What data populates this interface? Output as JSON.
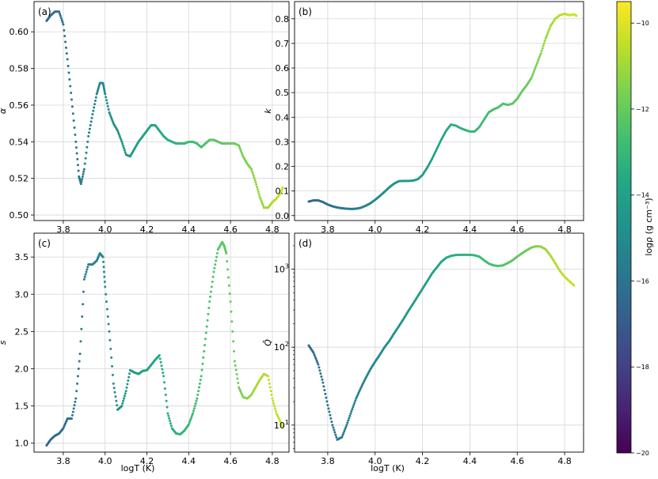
{
  "figure": {
    "x_axis_label": "logT (K)",
    "colorbar": {
      "label": "logρ (g cm⁻³)",
      "range": [
        -20,
        -9.5
      ],
      "ticks": [
        "-20",
        "-18",
        "-16",
        "-14",
        "-12",
        "-10"
      ],
      "colormap": "viridis"
    }
  },
  "chart_data": [
    {
      "type": "scatter",
      "panel_label": "(a)",
      "ylabel": "α",
      "xlim": [
        3.66,
        4.88
      ],
      "ylim": [
        0.497,
        0.6165
      ],
      "y_scale": "linear",
      "x_ticks": [
        "3.8",
        "4.0",
        "4.2",
        "4.4",
        "4.6",
        "4.8"
      ],
      "y_ticks": [
        "0.50",
        "0.52",
        "0.54",
        "0.56",
        "0.58",
        "0.60"
      ],
      "grid": true,
      "series": [
        {
          "x": [
            3.72,
            3.74,
            3.76,
            3.78,
            3.8,
            3.82,
            3.84,
            3.86,
            3.875,
            3.885,
            3.9,
            3.92,
            3.94,
            3.96,
            3.975,
            3.99,
            4.0,
            4.02,
            4.04,
            4.06,
            4.08,
            4.1,
            4.12,
            4.14,
            4.16,
            4.18,
            4.2,
            4.22,
            4.24,
            4.26,
            4.28,
            4.3,
            4.32,
            4.34,
            4.36,
            4.38,
            4.4,
            4.42,
            4.44,
            4.46,
            4.48,
            4.5,
            4.52,
            4.54,
            4.56,
            4.58,
            4.6,
            4.62,
            4.64,
            4.66,
            4.68,
            4.7,
            4.72,
            4.74,
            4.76,
            4.78,
            4.8,
            4.82,
            4.84,
            4.85
          ],
          "y": [
            0.606,
            0.609,
            0.611,
            0.611,
            0.604,
            0.585,
            0.563,
            0.54,
            0.521,
            0.517,
            0.525,
            0.543,
            0.555,
            0.566,
            0.572,
            0.572,
            0.566,
            0.556,
            0.55,
            0.546,
            0.54,
            0.533,
            0.532,
            0.536,
            0.54,
            0.543,
            0.546,
            0.549,
            0.549,
            0.546,
            0.543,
            0.541,
            0.54,
            0.539,
            0.539,
            0.539,
            0.54,
            0.54,
            0.539,
            0.537,
            0.539,
            0.541,
            0.541,
            0.54,
            0.539,
            0.539,
            0.539,
            0.539,
            0.538,
            0.532,
            0.528,
            0.525,
            0.518,
            0.51,
            0.504,
            0.504,
            0.507,
            0.509,
            0.512,
            0.515
          ],
          "logrho": [
            -16.5,
            -16.4,
            -16.3,
            -16.2,
            -16.1,
            -16.0,
            -15.9,
            -15.8,
            -15.7,
            -15.6,
            -15.5,
            -15.4,
            -15.3,
            -15.2,
            -15.1,
            -15.0,
            -14.9,
            -14.8,
            -14.7,
            -14.6,
            -14.5,
            -14.4,
            -14.3,
            -14.2,
            -14.1,
            -14.0,
            -13.9,
            -13.8,
            -13.7,
            -13.6,
            -13.5,
            -13.4,
            -13.3,
            -13.2,
            -13.1,
            -13.0,
            -12.9,
            -12.8,
            -12.7,
            -12.6,
            -12.5,
            -12.4,
            -12.3,
            -12.2,
            -12.1,
            -12.0,
            -11.9,
            -11.8,
            -11.7,
            -11.6,
            -11.5,
            -11.4,
            -11.3,
            -11.2,
            -11.1,
            -11.0,
            -10.8,
            -10.6,
            -10.4,
            -10.2
          ]
        }
      ]
    },
    {
      "type": "scatter",
      "panel_label": "(b)",
      "ylabel": "k",
      "xlim": [
        3.66,
        4.88
      ],
      "ylim": [
        -0.02,
        0.87
      ],
      "y_scale": "linear",
      "x_ticks": [
        "3.8",
        "4.0",
        "4.2",
        "4.4",
        "4.6",
        "4.8"
      ],
      "y_ticks": [
        "0.0",
        "0.1",
        "0.2",
        "0.3",
        "0.4",
        "0.5",
        "0.6",
        "0.7",
        "0.8"
      ],
      "grid": true,
      "series": [
        {
          "x": [
            3.72,
            3.74,
            3.76,
            3.78,
            3.8,
            3.82,
            3.84,
            3.86,
            3.88,
            3.9,
            3.92,
            3.94,
            3.96,
            3.98,
            4.0,
            4.02,
            4.04,
            4.06,
            4.08,
            4.1,
            4.12,
            4.14,
            4.16,
            4.18,
            4.2,
            4.22,
            4.24,
            4.26,
            4.28,
            4.3,
            4.32,
            4.34,
            4.36,
            4.38,
            4.4,
            4.42,
            4.44,
            4.46,
            4.48,
            4.5,
            4.52,
            4.54,
            4.56,
            4.58,
            4.6,
            4.62,
            4.64,
            4.66,
            4.68,
            4.7,
            4.72,
            4.74,
            4.76,
            4.78,
            4.8,
            4.82,
            4.84,
            4.85
          ],
          "y": [
            0.057,
            0.062,
            0.062,
            0.055,
            0.045,
            0.038,
            0.033,
            0.03,
            0.028,
            0.027,
            0.028,
            0.032,
            0.04,
            0.05,
            0.064,
            0.08,
            0.097,
            0.115,
            0.13,
            0.14,
            0.141,
            0.141,
            0.142,
            0.148,
            0.165,
            0.195,
            0.23,
            0.27,
            0.31,
            0.345,
            0.37,
            0.366,
            0.356,
            0.348,
            0.342,
            0.342,
            0.36,
            0.39,
            0.42,
            0.432,
            0.44,
            0.455,
            0.45,
            0.455,
            0.475,
            0.505,
            0.53,
            0.56,
            0.61,
            0.66,
            0.72,
            0.77,
            0.8,
            0.815,
            0.82,
            0.815,
            0.818,
            0.812
          ],
          "logrho": [
            -16.5,
            -16.4,
            -16.3,
            -16.2,
            -16.1,
            -16.0,
            -15.9,
            -15.8,
            -15.7,
            -15.6,
            -15.5,
            -15.4,
            -15.3,
            -15.2,
            -15.1,
            -15.0,
            -14.9,
            -14.8,
            -14.7,
            -14.6,
            -14.5,
            -14.4,
            -14.3,
            -14.2,
            -14.1,
            -14.0,
            -13.9,
            -13.8,
            -13.7,
            -13.6,
            -13.5,
            -13.4,
            -13.3,
            -13.2,
            -13.1,
            -13.0,
            -12.9,
            -12.8,
            -12.7,
            -12.6,
            -12.5,
            -12.4,
            -12.3,
            -12.2,
            -12.1,
            -12.0,
            -11.9,
            -11.8,
            -11.6,
            -11.4,
            -11.2,
            -11.0,
            -10.8,
            -10.6,
            -10.5,
            -10.4,
            -10.3,
            -10.2
          ]
        }
      ]
    },
    {
      "type": "scatter",
      "panel_label": "(c)",
      "ylabel": "s",
      "xlim": [
        3.66,
        4.88
      ],
      "ylim": [
        0.88,
        3.82
      ],
      "y_scale": "linear",
      "x_ticks": [
        "3.8",
        "4.0",
        "4.2",
        "4.4",
        "4.6",
        "4.8"
      ],
      "y_ticks": [
        "1.0",
        "1.5",
        "2.0",
        "2.5",
        "3.0",
        "3.5"
      ],
      "grid": true,
      "series": [
        {
          "x": [
            3.72,
            3.74,
            3.76,
            3.78,
            3.8,
            3.82,
            3.84,
            3.86,
            3.88,
            3.9,
            3.92,
            3.94,
            3.96,
            3.975,
            3.99,
            4.0,
            4.02,
            4.04,
            4.06,
            4.08,
            4.1,
            4.12,
            4.14,
            4.16,
            4.18,
            4.2,
            4.22,
            4.24,
            4.26,
            4.28,
            4.3,
            4.32,
            4.34,
            4.36,
            4.38,
            4.4,
            4.42,
            4.44,
            4.46,
            4.48,
            4.5,
            4.52,
            4.54,
            4.56,
            4.57,
            4.58,
            4.6,
            4.62,
            4.64,
            4.66,
            4.68,
            4.7,
            4.72,
            4.74,
            4.76,
            4.78,
            4.8,
            4.82,
            4.84,
            4.85
          ],
          "y": [
            0.97,
            1.05,
            1.1,
            1.13,
            1.2,
            1.33,
            1.33,
            1.6,
            2.2,
            3.2,
            3.4,
            3.4,
            3.45,
            3.55,
            3.5,
            3.1,
            2.5,
            1.8,
            1.45,
            1.5,
            1.7,
            1.98,
            1.95,
            1.93,
            1.97,
            1.98,
            2.05,
            2.12,
            2.18,
            1.9,
            1.4,
            1.2,
            1.13,
            1.12,
            1.17,
            1.25,
            1.4,
            1.6,
            1.9,
            2.4,
            2.9,
            3.3,
            3.6,
            3.7,
            3.65,
            3.55,
            2.9,
            2.1,
            1.75,
            1.62,
            1.6,
            1.65,
            1.75,
            1.85,
            1.93,
            1.9,
            1.6,
            1.4,
            1.28,
            1.22
          ],
          "logrho": [
            -16.5,
            -16.4,
            -16.3,
            -16.2,
            -16.1,
            -16.0,
            -15.9,
            -15.8,
            -15.7,
            -15.6,
            -15.5,
            -15.4,
            -15.3,
            -15.2,
            -15.1,
            -15.0,
            -14.9,
            -14.8,
            -14.7,
            -14.6,
            -14.5,
            -14.4,
            -14.3,
            -14.2,
            -14.1,
            -14.0,
            -13.9,
            -13.8,
            -13.7,
            -13.6,
            -13.5,
            -13.4,
            -13.3,
            -13.2,
            -13.1,
            -13.0,
            -12.9,
            -12.8,
            -12.7,
            -12.6,
            -12.5,
            -12.4,
            -12.3,
            -12.2,
            -12.15,
            -12.1,
            -12.0,
            -11.9,
            -11.7,
            -11.5,
            -11.3,
            -11.1,
            -10.9,
            -10.8,
            -10.7,
            -10.6,
            -10.5,
            -10.4,
            -10.3,
            -10.2
          ]
        }
      ]
    },
    {
      "type": "scatter",
      "panel_label": "(d)",
      "ylabel": "Q̄",
      "xlim": [
        3.66,
        4.88
      ],
      "ylim": [
        4.5,
        2900
      ],
      "y_scale": "log",
      "x_ticks": [
        "3.8",
        "4.0",
        "4.2",
        "4.4",
        "4.6",
        "4.8"
      ],
      "y_ticks": [
        {
          "value": 10,
          "base": "10",
          "exp": "1"
        },
        {
          "value": 100,
          "base": "10",
          "exp": "2"
        },
        {
          "value": 1000,
          "base": "10",
          "exp": "3"
        }
      ],
      "grid": true,
      "series": [
        {
          "x": [
            3.72,
            3.74,
            3.76,
            3.78,
            3.8,
            3.82,
            3.84,
            3.86,
            3.88,
            3.9,
            3.92,
            3.94,
            3.96,
            3.98,
            4.0,
            4.02,
            4.04,
            4.06,
            4.08,
            4.1,
            4.12,
            4.14,
            4.16,
            4.18,
            4.2,
            4.22,
            4.24,
            4.26,
            4.28,
            4.3,
            4.32,
            4.34,
            4.36,
            4.38,
            4.4,
            4.42,
            4.44,
            4.46,
            4.48,
            4.5,
            4.52,
            4.54,
            4.56,
            4.58,
            4.6,
            4.62,
            4.64,
            4.66,
            4.68,
            4.7,
            4.72,
            4.74,
            4.76,
            4.78,
            4.8,
            4.82,
            4.84
          ],
          "y": [
            105,
            85,
            60,
            35,
            18,
            10,
            6.5,
            7,
            10,
            15,
            22,
            30,
            40,
            52,
            65,
            80,
            100,
            120,
            150,
            185,
            230,
            290,
            360,
            450,
            560,
            700,
            880,
            1050,
            1250,
            1400,
            1480,
            1520,
            1530,
            1530,
            1530,
            1510,
            1450,
            1300,
            1180,
            1120,
            1100,
            1120,
            1200,
            1300,
            1450,
            1600,
            1750,
            1900,
            1970,
            1950,
            1800,
            1500,
            1200,
            950,
            800,
            700,
            620
          ],
          "logrho": [
            -16.5,
            -16.4,
            -16.3,
            -16.2,
            -16.1,
            -16.0,
            -15.9,
            -15.8,
            -15.7,
            -15.6,
            -15.5,
            -15.4,
            -15.3,
            -15.2,
            -15.1,
            -15.0,
            -14.9,
            -14.8,
            -14.7,
            -14.6,
            -14.5,
            -14.4,
            -14.3,
            -14.2,
            -14.1,
            -14.0,
            -13.9,
            -13.8,
            -13.7,
            -13.6,
            -13.5,
            -13.4,
            -13.3,
            -13.2,
            -13.1,
            -13.0,
            -12.9,
            -12.8,
            -12.7,
            -12.6,
            -12.5,
            -12.4,
            -12.3,
            -12.2,
            -12.1,
            -12.0,
            -11.9,
            -11.7,
            -11.5,
            -11.3,
            -11.1,
            -10.9,
            -10.7,
            -10.6,
            -10.5,
            -10.4,
            -10.3
          ]
        }
      ]
    }
  ]
}
